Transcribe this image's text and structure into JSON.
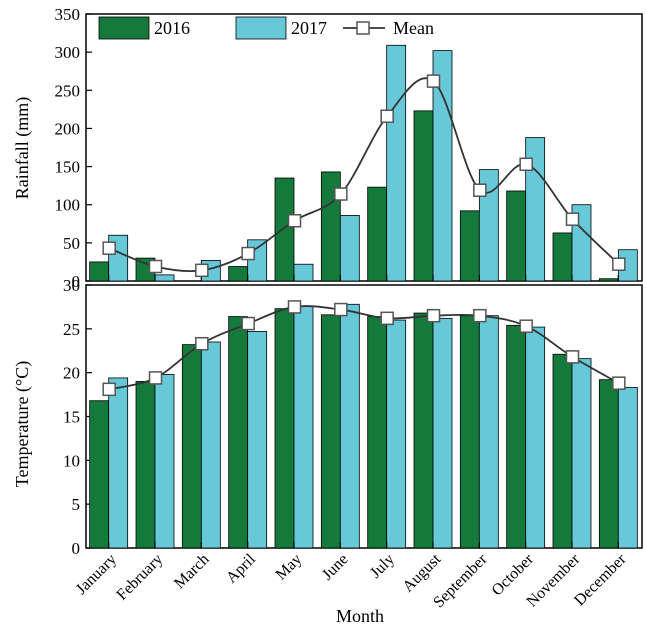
{
  "chart_data": [
    {
      "type": "bar",
      "panel": "rainfall",
      "categories": [
        "January",
        "February",
        "March",
        "April",
        "May",
        "June",
        "July",
        "August",
        "September",
        "October",
        "November",
        "December"
      ],
      "series": [
        {
          "name": "2016",
          "values": [
            25,
            30,
            0,
            19,
            135,
            143,
            123,
            223,
            92,
            118,
            63,
            3
          ]
        },
        {
          "name": "2017",
          "values": [
            60,
            8,
            27,
            54,
            22,
            86,
            309,
            302,
            146,
            188,
            100,
            41
          ]
        },
        {
          "name": "Mean",
          "type": "line",
          "values": [
            43,
            19,
            14,
            36,
            79,
            114,
            216,
            262,
            119,
            153,
            81,
            22
          ]
        }
      ],
      "xlabel": "",
      "ylabel": "Rainfall (mm)",
      "ylim": [
        0,
        350
      ],
      "yticks": [
        0,
        50,
        100,
        150,
        200,
        250,
        300,
        350
      ],
      "legend": "top",
      "grid": false,
      "colors": {
        "2016": "#147a3c",
        "2017": "#67c8d8",
        "Mean": "#333333",
        "marker_fill": "#ffffff"
      }
    },
    {
      "type": "bar",
      "panel": "temperature",
      "categories": [
        "January",
        "February",
        "March",
        "April",
        "May",
        "June",
        "July",
        "August",
        "September",
        "October",
        "November",
        "December"
      ],
      "series": [
        {
          "name": "2016",
          "values": [
            16.8,
            19.0,
            23.2,
            26.4,
            27.3,
            26.6,
            26.4,
            26.8,
            26.5,
            25.4,
            22.1,
            19.2
          ]
        },
        {
          "name": "2017",
          "values": [
            19.4,
            19.8,
            23.5,
            24.7,
            27.6,
            27.8,
            26.0,
            26.2,
            26.5,
            25.2,
            21.6,
            18.3
          ]
        },
        {
          "name": "Mean",
          "type": "line",
          "values": [
            18.1,
            19.4,
            23.3,
            25.6,
            27.5,
            27.2,
            26.2,
            26.5,
            26.5,
            25.3,
            21.8,
            18.8
          ]
        }
      ],
      "xlabel": "Month",
      "ylabel": "Temperature (°C)",
      "ylim": [
        0,
        30
      ],
      "yticks": [
        0,
        5,
        10,
        15,
        20,
        25,
        30
      ],
      "grid": false,
      "colors": {
        "2016": "#147a3c",
        "2017": "#67c8d8",
        "Mean": "#333333",
        "marker_fill": "#ffffff"
      }
    }
  ]
}
